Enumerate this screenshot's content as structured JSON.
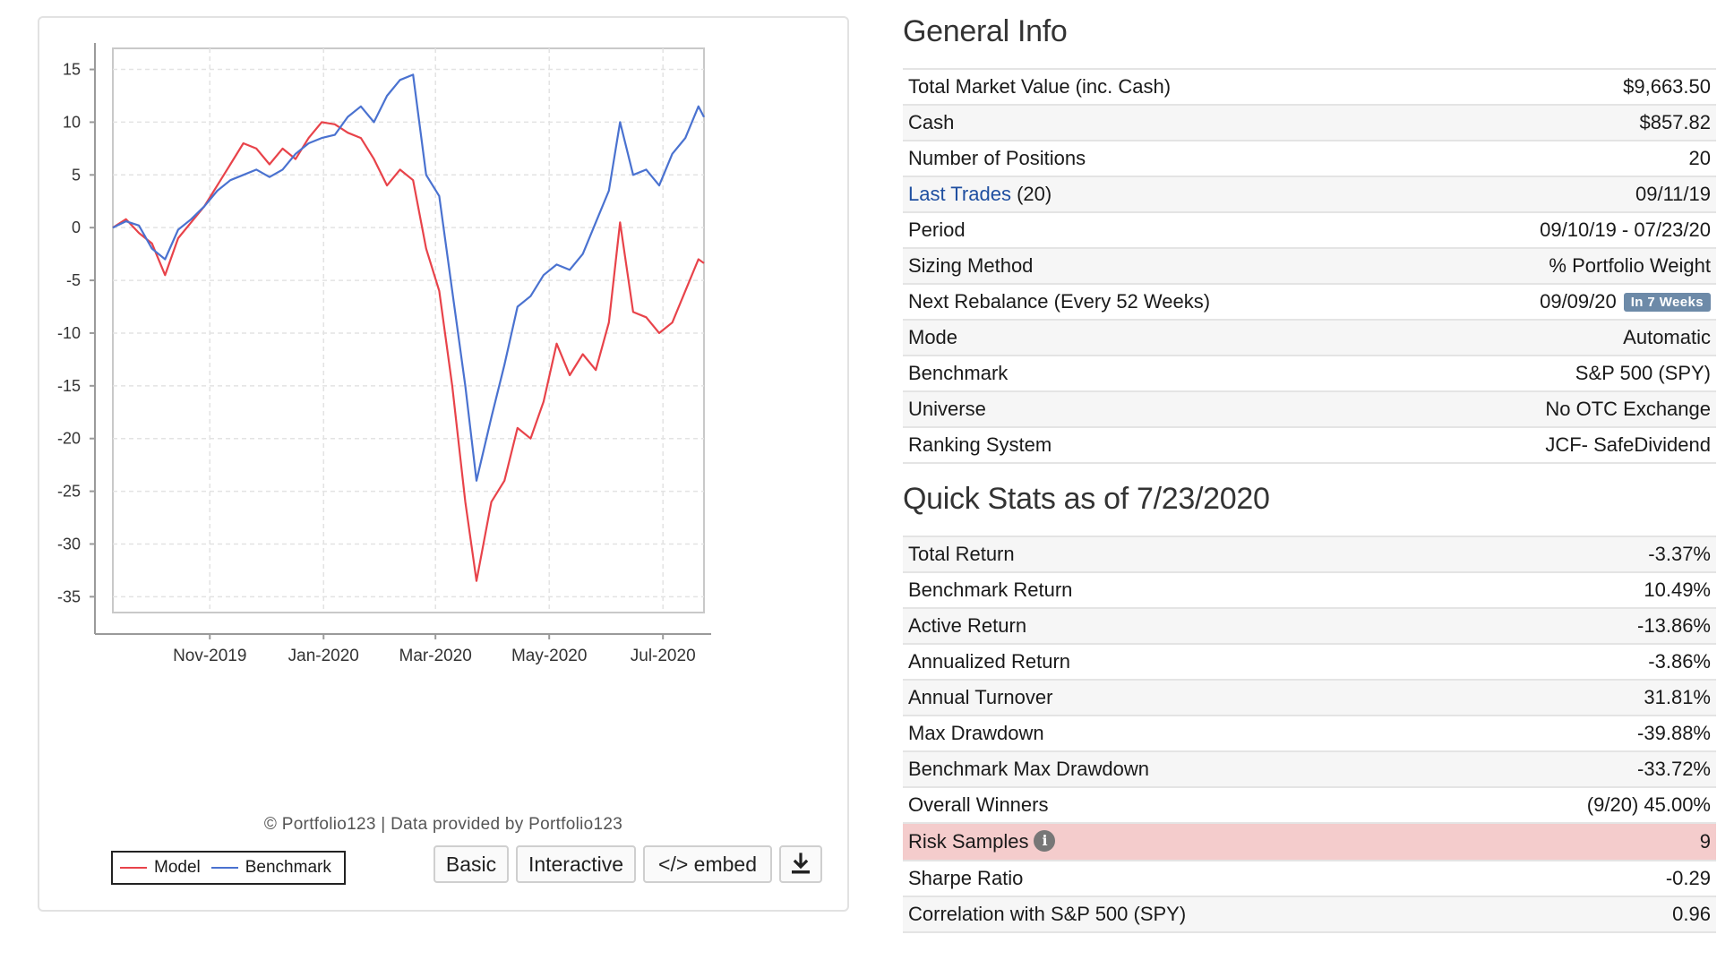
{
  "chart": {
    "credit": "© Portfolio123 | Data provided by Portfolio123",
    "legend": {
      "model": "Model",
      "benchmark": "Benchmark"
    },
    "buttons": {
      "basic": "Basic",
      "interactive": "Interactive",
      "embed": "</> embed",
      "download_icon": "download-icon"
    },
    "colors": {
      "model": "#e8434a",
      "benchmark": "#4a72d0"
    }
  },
  "chart_data": {
    "type": "line",
    "title": "",
    "xlabel": "",
    "ylabel": "",
    "x_ticks": [
      "Nov-2019",
      "Jan-2020",
      "Mar-2020",
      "May-2020",
      "Jul-2020"
    ],
    "y_ticks": [
      15,
      10,
      5,
      0,
      -5,
      -10,
      -15,
      -20,
      -25,
      -30,
      -35
    ],
    "ylim": [
      -36.5,
      17
    ],
    "xlim": [
      "2019-09-10",
      "2020-07-23"
    ],
    "grid": true,
    "legend_position": "bottom-left",
    "series": [
      {
        "name": "Model",
        "color": "#e8434a",
        "points": [
          [
            "2019-09-10",
            0
          ],
          [
            "2019-09-17",
            0.8
          ],
          [
            "2019-09-24",
            -0.5
          ],
          [
            "2019-10-01",
            -1.5
          ],
          [
            "2019-10-08",
            -4.5
          ],
          [
            "2019-10-15",
            -1.0
          ],
          [
            "2019-10-22",
            0.5
          ],
          [
            "2019-10-29",
            2.0
          ],
          [
            "2019-11-05",
            4.0
          ],
          [
            "2019-11-12",
            6.0
          ],
          [
            "2019-11-19",
            8.0
          ],
          [
            "2019-11-26",
            7.5
          ],
          [
            "2019-12-03",
            6.0
          ],
          [
            "2019-12-10",
            7.5
          ],
          [
            "2019-12-17",
            6.5
          ],
          [
            "2019-12-24",
            8.5
          ],
          [
            "2019-12-31",
            10.0
          ],
          [
            "2020-01-07",
            9.8
          ],
          [
            "2020-01-14",
            9.0
          ],
          [
            "2020-01-21",
            8.5
          ],
          [
            "2020-01-28",
            6.5
          ],
          [
            "2020-02-04",
            4.0
          ],
          [
            "2020-02-11",
            5.5
          ],
          [
            "2020-02-18",
            4.5
          ],
          [
            "2020-02-25",
            -2.0
          ],
          [
            "2020-03-03",
            -6.0
          ],
          [
            "2020-03-10",
            -15.0
          ],
          [
            "2020-03-17",
            -26.0
          ],
          [
            "2020-03-23",
            -33.5
          ],
          [
            "2020-03-31",
            -26.0
          ],
          [
            "2020-04-07",
            -24.0
          ],
          [
            "2020-04-14",
            -19.0
          ],
          [
            "2020-04-21",
            -20.0
          ],
          [
            "2020-04-28",
            -16.5
          ],
          [
            "2020-05-05",
            -11.0
          ],
          [
            "2020-05-12",
            -14.0
          ],
          [
            "2020-05-19",
            -12.0
          ],
          [
            "2020-05-26",
            -13.5
          ],
          [
            "2020-06-02",
            -9.0
          ],
          [
            "2020-06-08",
            0.5
          ],
          [
            "2020-06-15",
            -8.0
          ],
          [
            "2020-06-22",
            -8.5
          ],
          [
            "2020-06-29",
            -10.0
          ],
          [
            "2020-07-06",
            -9.0
          ],
          [
            "2020-07-13",
            -6.0
          ],
          [
            "2020-07-20",
            -3.0
          ],
          [
            "2020-07-23",
            -3.37
          ]
        ]
      },
      {
        "name": "Benchmark",
        "color": "#4a72d0",
        "points": [
          [
            "2019-09-10",
            0
          ],
          [
            "2019-09-17",
            0.6
          ],
          [
            "2019-09-24",
            0.2
          ],
          [
            "2019-10-01",
            -2.0
          ],
          [
            "2019-10-08",
            -3.0
          ],
          [
            "2019-10-15",
            -0.2
          ],
          [
            "2019-10-22",
            0.8
          ],
          [
            "2019-10-29",
            2.0
          ],
          [
            "2019-11-05",
            3.5
          ],
          [
            "2019-11-12",
            4.5
          ],
          [
            "2019-11-19",
            5.0
          ],
          [
            "2019-11-26",
            5.5
          ],
          [
            "2019-12-03",
            4.8
          ],
          [
            "2019-12-10",
            5.5
          ],
          [
            "2019-12-17",
            7.0
          ],
          [
            "2019-12-24",
            8.0
          ],
          [
            "2019-12-31",
            8.5
          ],
          [
            "2020-01-07",
            8.8
          ],
          [
            "2020-01-14",
            10.5
          ],
          [
            "2020-01-21",
            11.5
          ],
          [
            "2020-01-28",
            10.0
          ],
          [
            "2020-02-04",
            12.5
          ],
          [
            "2020-02-11",
            14.0
          ],
          [
            "2020-02-18",
            14.5
          ],
          [
            "2020-02-25",
            5.0
          ],
          [
            "2020-03-03",
            3.0
          ],
          [
            "2020-03-10",
            -6.0
          ],
          [
            "2020-03-17",
            -15.0
          ],
          [
            "2020-03-23",
            -24.0
          ],
          [
            "2020-03-31",
            -18.0
          ],
          [
            "2020-04-07",
            -13.0
          ],
          [
            "2020-04-14",
            -7.5
          ],
          [
            "2020-04-21",
            -6.5
          ],
          [
            "2020-04-28",
            -4.5
          ],
          [
            "2020-05-05",
            -3.5
          ],
          [
            "2020-05-12",
            -4.0
          ],
          [
            "2020-05-19",
            -2.5
          ],
          [
            "2020-05-26",
            0.5
          ],
          [
            "2020-06-02",
            3.5
          ],
          [
            "2020-06-08",
            10.0
          ],
          [
            "2020-06-15",
            5.0
          ],
          [
            "2020-06-22",
            5.5
          ],
          [
            "2020-06-29",
            4.0
          ],
          [
            "2020-07-06",
            7.0
          ],
          [
            "2020-07-13",
            8.5
          ],
          [
            "2020-07-20",
            11.5
          ],
          [
            "2020-07-23",
            10.49
          ]
        ]
      }
    ]
  },
  "general_info": {
    "title": "General Info",
    "rows": [
      {
        "label": "Total Market Value (inc. Cash)",
        "value": "$9,663.50"
      },
      {
        "label": "Cash",
        "value": "$857.82"
      },
      {
        "label": "Number of Positions",
        "value": "20"
      },
      {
        "label": "Last Trades",
        "label_suffix": " (20)",
        "value": "09/11/19"
      },
      {
        "label": "Period",
        "value": "09/10/19 - 07/23/20"
      },
      {
        "label": "Sizing Method",
        "value": "% Portfolio Weight"
      },
      {
        "label": "Next Rebalance (Every 52 Weeks)",
        "value": "09/09/20",
        "badge": "In 7 Weeks"
      },
      {
        "label": "Mode",
        "value": "Automatic"
      },
      {
        "label": "Benchmark",
        "value": "S&P 500 (SPY)"
      },
      {
        "label": "Universe",
        "value": "No OTC Exchange"
      },
      {
        "label": "Ranking System",
        "value": "JCF- SafeDividend"
      }
    ]
  },
  "quick_stats": {
    "title": "Quick Stats as of 7/23/2020",
    "rows": [
      {
        "label": "Total Return",
        "value": "-3.37%"
      },
      {
        "label": "Benchmark Return",
        "value": "10.49%"
      },
      {
        "label": "Active Return",
        "value": "-13.86%"
      },
      {
        "label": "Annualized Return",
        "value": "-3.86%"
      },
      {
        "label": "Annual Turnover",
        "value": "31.81%"
      },
      {
        "label": "Max Drawdown",
        "value": "-39.88%"
      },
      {
        "label": "Benchmark Max Drawdown",
        "value": "-33.72%"
      },
      {
        "label": "Overall Winners",
        "value": "(9/20) 45.00%"
      },
      {
        "label": "Risk Samples",
        "value": "9",
        "icon": "info-icon"
      },
      {
        "label": "Sharpe Ratio",
        "value": "-0.29"
      },
      {
        "label": "Correlation with S&P 500 (SPY)",
        "value": "0.96"
      }
    ]
  }
}
